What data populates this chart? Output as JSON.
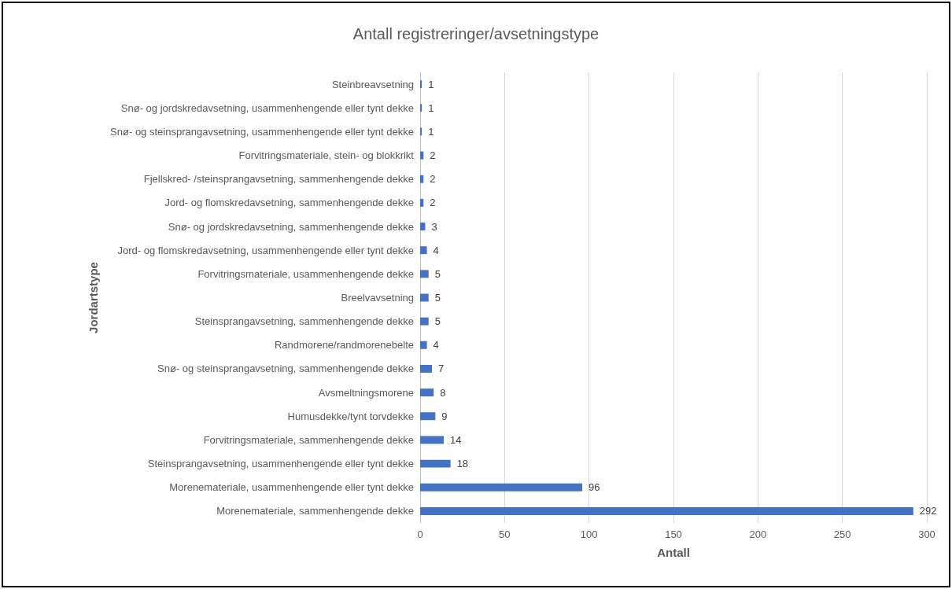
{
  "chart_data": {
    "type": "bar",
    "orientation": "horizontal",
    "title": "Antall registreringer/avsetningstype",
    "xlabel": "Antall",
    "ylabel": "Jordartstype",
    "categories": [
      "Steinbreavsetning",
      "Snø- og jordskredavsetning, usammenhengende eller tynt dekke",
      "Snø- og steinsprangavsetning, usammenhengende eller tynt dekke",
      "Forvitringsmateriale, stein- og blokkrikt",
      "Fjellskred- /steinsprangavsetning, sammenhengende dekke",
      "Jord- og flomskredavsetning, sammenhengende dekke",
      "Snø- og jordskredavsetning, sammenhengende dekke",
      "Jord- og flomskredavsetning, usammenhengende eller tynt dekke",
      "Forvitringsmateriale, usammenhengende dekke",
      "Breelvavsetning",
      "Steinsprangavsetning, sammenhengende dekke",
      "Randmorene/randmorenebelte",
      "Snø- og steinsprangavsetning, sammenhengende dekke",
      "Avsmeltningsmorene",
      "Humusdekke/tynt torvdekke",
      "Forvitringsmateriale, sammenhengende dekke",
      "Steinsprangavsetning, usammenhengende eller tynt dekke",
      "Morenemateriale, usammenhengende eller tynt dekke",
      "Morenemateriale, sammenhengende dekke"
    ],
    "values": [
      1,
      1,
      1,
      2,
      2,
      2,
      3,
      4,
      5,
      5,
      5,
      4,
      7,
      8,
      9,
      14,
      18,
      96,
      292
    ],
    "color": "#4472c4",
    "xlim": [
      0,
      300
    ],
    "xticks": [
      0,
      50,
      100,
      150,
      200,
      250,
      300
    ],
    "grid": "x",
    "data_labels": true
  }
}
